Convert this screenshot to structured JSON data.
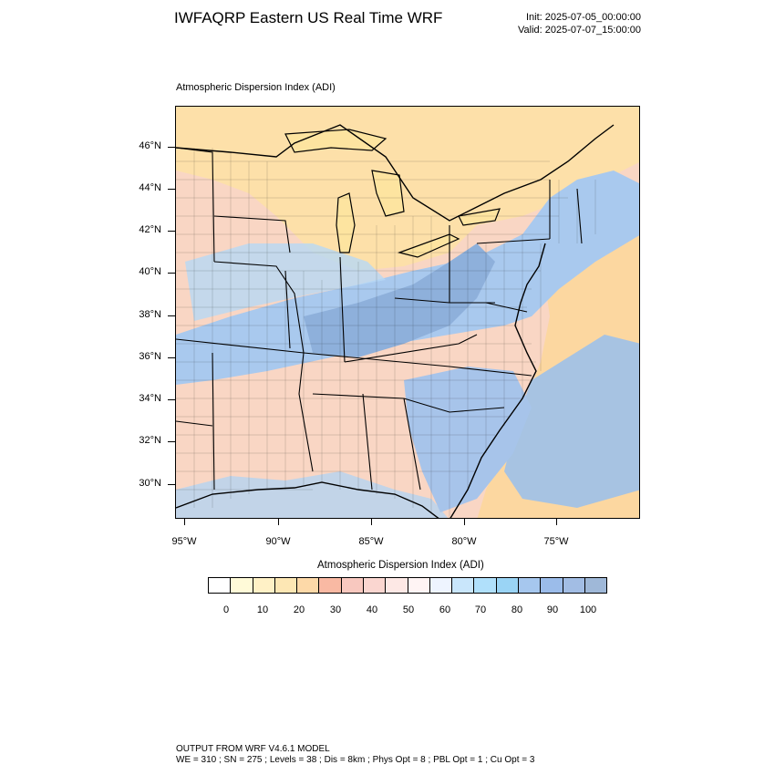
{
  "header": {
    "title": "IWFAQRP Eastern US Real Time WRF",
    "init": "Init: 2025-07-05_00:00:00",
    "valid": "Valid: 2025-07-07_15:00:00"
  },
  "plot": {
    "title": "Atmospheric Dispersion Index   (ADI)",
    "lat_labels": [
      "46°N",
      "44°N",
      "42°N",
      "40°N",
      "38°N",
      "36°N",
      "34°N",
      "32°N",
      "30°N"
    ],
    "lon_labels": [
      "95°W",
      "90°W",
      "85°W",
      "80°W",
      "75°W"
    ]
  },
  "colorbar": {
    "title": "Atmospheric Dispersion Index  (ADI)",
    "labels": [
      "0",
      "10",
      "20",
      "30",
      "40",
      "50",
      "60",
      "70",
      "80",
      "90",
      "100"
    ],
    "colors": [
      "#ffffff",
      "#fffad8",
      "#fff1c6",
      "#fde7b4",
      "#fdd9a8",
      "#f9b9a3",
      "#f8c8bf",
      "#fad6d0",
      "#fde8e5",
      "#fff4f4",
      "#eef4ff",
      "#c9e6fb",
      "#b0e0fb",
      "#9ad4f5",
      "#a6c7ee",
      "#9bbcea",
      "#a2bde4",
      "#9fb8d8"
    ]
  },
  "footer": {
    "line1": "OUTPUT FROM WRF V4.6.1 MODEL",
    "line2": "WE = 310 ; SN = 275 ; Levels = 38 ; Dis = 8km ; Phys Opt = 8 ; PBL Opt = 1 ; Cu Opt = 3"
  }
}
